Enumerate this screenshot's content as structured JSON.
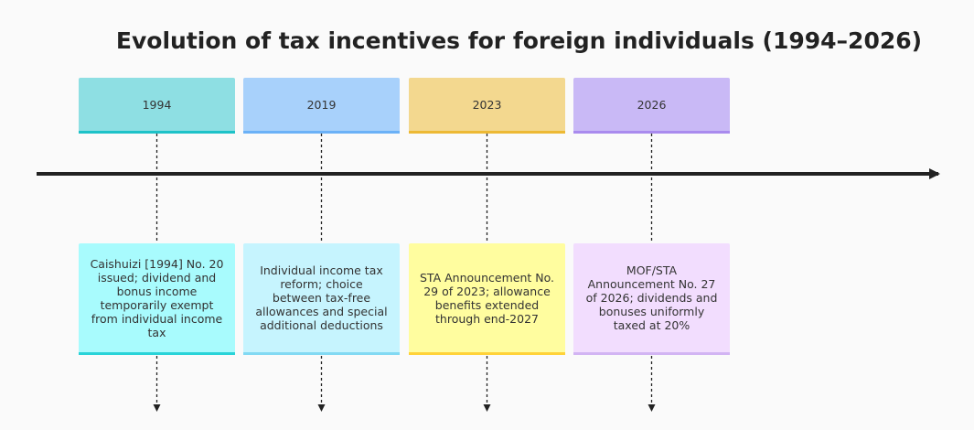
{
  "title": "Evolution of tax incentives for foreign individuals (1994–2026)",
  "timeline": [
    {
      "period": "1994",
      "event": "Caishuizi [1994] No. 20 issued; dividend and bonus income temporarily exempt from individual income tax",
      "colors": {
        "period_fill": "#8edfe3",
        "period_border": "#1ec2c8",
        "event_fill": "#a8fbfd",
        "event_border": "#29d3d8"
      }
    },
    {
      "period": "2019",
      "event": "Individual income tax reform; choice between tax-free allowances and special additional deductions",
      "colors": {
        "period_fill": "#a8d1fb",
        "period_border": "#6bb1f7",
        "event_fill": "#c6f4fe",
        "event_border": "#82d9f3"
      }
    },
    {
      "period": "2023",
      "event": "STA Announcement No. 29 of 2023; allowance benefits extended through end-2027",
      "colors": {
        "period_fill": "#f3d88f",
        "period_border": "#edb934",
        "event_fill": "#fffd9f",
        "event_border": "#ffd239"
      }
    },
    {
      "period": "2026",
      "event": "MOF/STA Announcement No. 27 of 2026; dividends and bonuses uniformly taxed at 20%",
      "colors": {
        "period_fill": "#c9b9f6",
        "period_border": "#a98bee",
        "event_fill": "#f2ddfe",
        "event_border": "#d2b4f3"
      }
    }
  ]
}
